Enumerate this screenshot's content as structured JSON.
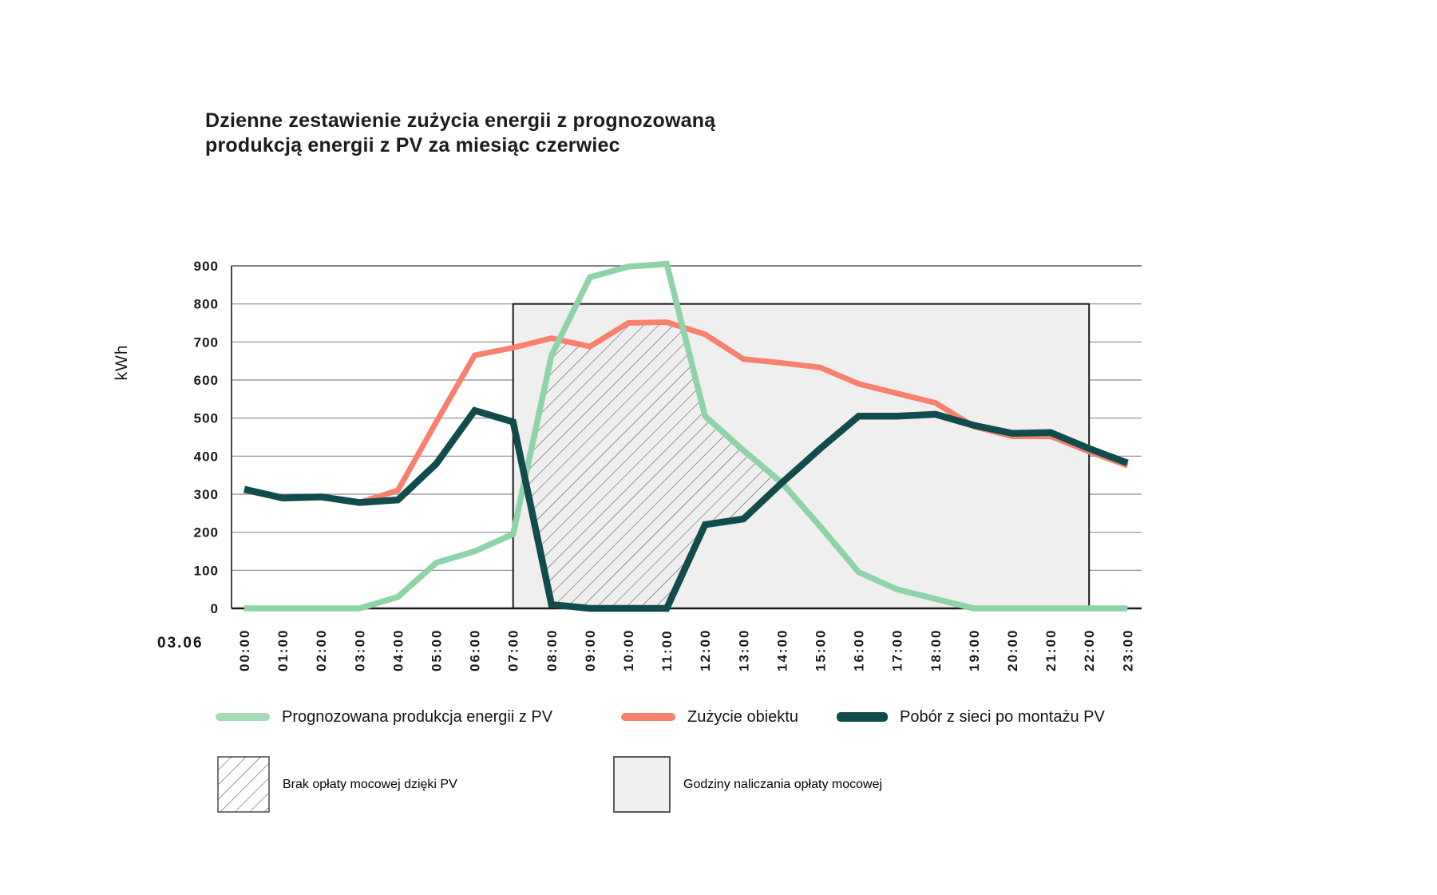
{
  "title": {
    "line1": "Dzienne zestawienie zużycia energii z prognozowaną",
    "line2": "produkcją energii z PV za miesiąc czerwiec"
  },
  "axes": {
    "ylabel": "kWh",
    "date_label": "03.06",
    "x_ticks": [
      "00:00",
      "01:00",
      "02:00",
      "03:00",
      "04:00",
      "05:00",
      "06:00",
      "07:00",
      "08:00",
      "09:00",
      "10:00",
      "11:00",
      "12:00",
      "13:00",
      "14:00",
      "15:00",
      "16:00",
      "17:00",
      "18:00",
      "19:00",
      "20:00",
      "21:00",
      "22:00",
      "23:00"
    ],
    "y_ticks": [
      0,
      100,
      200,
      300,
      400,
      500,
      600,
      700,
      800,
      900
    ]
  },
  "legend": {
    "line_items": [
      {
        "key": "green",
        "label": "Prognozowana produkcja energii z PV"
      },
      {
        "key": "red",
        "label": "Zużycie obiektu"
      },
      {
        "key": "teal",
        "label": "Pobór z sieci po montażu PV"
      }
    ],
    "area_items": [
      {
        "key": "hatch",
        "label": "Brak opłaty mocowej dzięki PV"
      },
      {
        "key": "gray",
        "label": "Godziny naliczania opłaty mocowej"
      }
    ]
  },
  "colors": {
    "green": "#8FD3A9",
    "green_swatch": "#A5DBB6",
    "red": "#F8806F",
    "teal": "#114B4B",
    "region_fill": "#F0EFEF",
    "region_border": "#1a1a1a",
    "grid": "#8a8a8a",
    "axis": "#1a1a1a",
    "hatch_line": "#4a4a4a",
    "text": "#1a1a1a"
  },
  "chart_data": {
    "type": "line",
    "title": "Dzienne zestawienie zużycia energii z prognozowaną produkcją energii z PV za miesiąc czerwiec",
    "xlabel": "",
    "ylabel": "kWh",
    "ylim": [
      0,
      900
    ],
    "ytick_step": 100,
    "grid": "horizontal",
    "legend_position": "bottom",
    "x_categories": [
      "00:00",
      "01:00",
      "02:00",
      "03:00",
      "04:00",
      "05:00",
      "06:00",
      "07:00",
      "08:00",
      "09:00",
      "10:00",
      "11:00",
      "12:00",
      "13:00",
      "14:00",
      "15:00",
      "16:00",
      "17:00",
      "18:00",
      "19:00",
      "20:00",
      "21:00",
      "22:00",
      "23:00"
    ],
    "date_label": "03.06",
    "series": [
      {
        "name": "Prognozowana produkcja energii z PV",
        "color_key": "green",
        "values": [
          0,
          0,
          0,
          0,
          30,
          120,
          150,
          195,
          665,
          870,
          898,
          905,
          505,
          415,
          330,
          215,
          95,
          50,
          25,
          0,
          0,
          0,
          0,
          0
        ]
      },
      {
        "name": "Zużycie obiektu",
        "color_key": "red",
        "values": [
          310,
          290,
          293,
          278,
          310,
          490,
          665,
          685,
          710,
          688,
          750,
          752,
          720,
          655,
          645,
          633,
          590,
          565,
          540,
          478,
          452,
          452,
          412,
          375
        ]
      },
      {
        "name": "Pobór z sieci po montażu PV",
        "color_key": "teal",
        "values": [
          313,
          290,
          293,
          278,
          285,
          380,
          520,
          490,
          10,
          0,
          0,
          0,
          220,
          235,
          330,
          420,
          505,
          505,
          510,
          481,
          460,
          462,
          420,
          382
        ]
      }
    ],
    "capacity_fee_window": {
      "label": "Godziny naliczania opłaty mocowej",
      "start": "07:00",
      "end": "22:00",
      "start_hour": 7,
      "end_hour": 22,
      "top_kwh": 800
    },
    "pv_no_fee_area": {
      "label": "Brak opłaty mocowej dzięki PV",
      "description_bounds": "area between grid-draw line and min(PV production, consumption), approx 07:20–14:00"
    }
  }
}
